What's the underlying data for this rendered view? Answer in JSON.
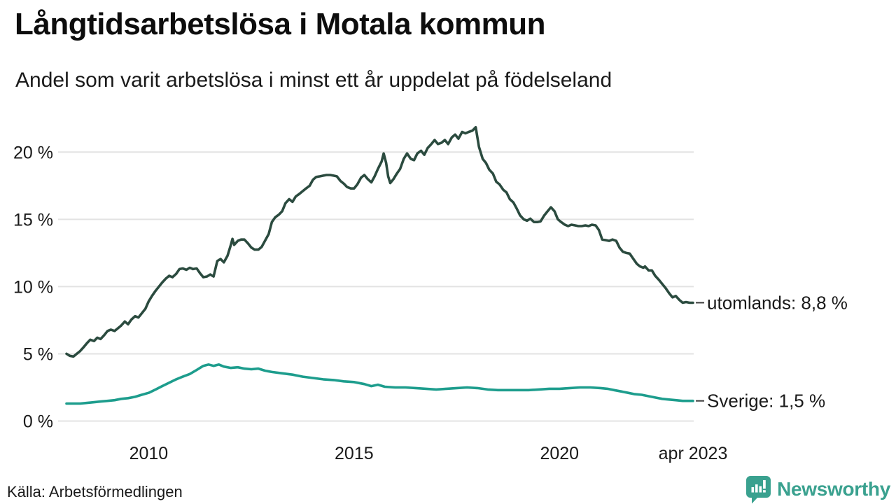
{
  "header": {
    "title": "Långtidsarbetslösa i Motala kommun",
    "subtitle": "Andel som varit arbetslösa i minst ett år uppdelat på födelseland"
  },
  "footer": {
    "source": "Källa: Arbetsförmedlingen",
    "brand": "Newsworthy"
  },
  "colors": {
    "utomlands_line": "#2b4b3f",
    "sverige_line": "#1d9d8d",
    "grid": "#e3e3e3",
    "text": "#1a1a1a",
    "brand_teal": "#3aa18f"
  },
  "chart_data": {
    "type": "line",
    "title": "Långtidsarbetslösa i Motala kommun",
    "subtitle": "Andel som varit arbetslösa i minst ett år uppdelat på födelseland",
    "xlabel": "",
    "ylabel": "",
    "x_unit": "year",
    "y_unit": "%",
    "xlim": [
      2008.0,
      2023.25
    ],
    "ylim": [
      0,
      22
    ],
    "grid": "horizontal",
    "legend_position": "end-of-line-labels",
    "y_ticks": [
      {
        "v": 0,
        "label": "0 %"
      },
      {
        "v": 5,
        "label": "5 %"
      },
      {
        "v": 10,
        "label": "10 %"
      },
      {
        "v": 15,
        "label": "15 %"
      },
      {
        "v": 20,
        "label": "20 %"
      }
    ],
    "x_ticks": [
      {
        "x": 2010,
        "label": "2010"
      },
      {
        "x": 2015,
        "label": "2015"
      },
      {
        "x": 2020,
        "label": "2020"
      },
      {
        "x": 2023.25,
        "label": "apr 2023"
      }
    ],
    "series": [
      {
        "name": "utomlands",
        "end_label": "utomlands: 8,8 %",
        "end_value_text": "8,8 %",
        "color": "#2b4b3f",
        "points": [
          [
            2008.0,
            5.0
          ],
          [
            2008.08,
            4.85
          ],
          [
            2008.17,
            4.8
          ],
          [
            2008.25,
            5.0
          ],
          [
            2008.33,
            5.2
          ],
          [
            2008.42,
            5.5
          ],
          [
            2008.5,
            5.8
          ],
          [
            2008.58,
            6.05
          ],
          [
            2008.67,
            5.95
          ],
          [
            2008.75,
            6.2
          ],
          [
            2008.83,
            6.1
          ],
          [
            2008.92,
            6.4
          ],
          [
            2009.0,
            6.7
          ],
          [
            2009.08,
            6.8
          ],
          [
            2009.17,
            6.7
          ],
          [
            2009.25,
            6.9
          ],
          [
            2009.33,
            7.1
          ],
          [
            2009.42,
            7.4
          ],
          [
            2009.5,
            7.2
          ],
          [
            2009.58,
            7.55
          ],
          [
            2009.67,
            7.8
          ],
          [
            2009.75,
            7.7
          ],
          [
            2009.83,
            8.0
          ],
          [
            2009.92,
            8.35
          ],
          [
            2010.0,
            8.9
          ],
          [
            2010.08,
            9.3
          ],
          [
            2010.17,
            9.7
          ],
          [
            2010.25,
            10.0
          ],
          [
            2010.33,
            10.3
          ],
          [
            2010.42,
            10.6
          ],
          [
            2010.5,
            10.8
          ],
          [
            2010.58,
            10.7
          ],
          [
            2010.67,
            10.95
          ],
          [
            2010.75,
            11.3
          ],
          [
            2010.83,
            11.35
          ],
          [
            2010.92,
            11.25
          ],
          [
            2011.0,
            11.4
          ],
          [
            2011.08,
            11.3
          ],
          [
            2011.17,
            11.35
          ],
          [
            2011.25,
            11.0
          ],
          [
            2011.33,
            10.7
          ],
          [
            2011.42,
            10.75
          ],
          [
            2011.5,
            10.9
          ],
          [
            2011.58,
            10.75
          ],
          [
            2011.67,
            11.9
          ],
          [
            2011.75,
            12.05
          ],
          [
            2011.83,
            11.8
          ],
          [
            2011.92,
            12.3
          ],
          [
            2012.0,
            13.1
          ],
          [
            2012.04,
            13.55
          ],
          [
            2012.08,
            13.1
          ],
          [
            2012.17,
            13.4
          ],
          [
            2012.25,
            13.5
          ],
          [
            2012.33,
            13.5
          ],
          [
            2012.42,
            13.2
          ],
          [
            2012.5,
            12.9
          ],
          [
            2012.58,
            12.75
          ],
          [
            2012.67,
            12.75
          ],
          [
            2012.75,
            12.95
          ],
          [
            2012.83,
            13.4
          ],
          [
            2012.92,
            13.9
          ],
          [
            2013.0,
            14.8
          ],
          [
            2013.08,
            15.15
          ],
          [
            2013.17,
            15.35
          ],
          [
            2013.25,
            15.6
          ],
          [
            2013.33,
            16.2
          ],
          [
            2013.42,
            16.5
          ],
          [
            2013.5,
            16.3
          ],
          [
            2013.58,
            16.7
          ],
          [
            2013.67,
            16.9
          ],
          [
            2013.75,
            17.1
          ],
          [
            2013.83,
            17.3
          ],
          [
            2013.92,
            17.5
          ],
          [
            2014.0,
            17.95
          ],
          [
            2014.08,
            18.15
          ],
          [
            2014.17,
            18.2
          ],
          [
            2014.25,
            18.25
          ],
          [
            2014.33,
            18.3
          ],
          [
            2014.42,
            18.3
          ],
          [
            2014.5,
            18.25
          ],
          [
            2014.58,
            18.2
          ],
          [
            2014.67,
            17.85
          ],
          [
            2014.75,
            17.65
          ],
          [
            2014.83,
            17.4
          ],
          [
            2014.92,
            17.3
          ],
          [
            2015.0,
            17.3
          ],
          [
            2015.08,
            17.6
          ],
          [
            2015.17,
            18.1
          ],
          [
            2015.25,
            18.3
          ],
          [
            2015.33,
            18.0
          ],
          [
            2015.42,
            17.75
          ],
          [
            2015.5,
            18.2
          ],
          [
            2015.58,
            18.75
          ],
          [
            2015.67,
            19.3
          ],
          [
            2015.72,
            19.9
          ],
          [
            2015.78,
            19.2
          ],
          [
            2015.83,
            18.2
          ],
          [
            2015.88,
            17.7
          ],
          [
            2015.96,
            18.0
          ],
          [
            2016.04,
            18.4
          ],
          [
            2016.12,
            18.75
          ],
          [
            2016.21,
            19.5
          ],
          [
            2016.29,
            19.9
          ],
          [
            2016.38,
            19.5
          ],
          [
            2016.46,
            19.4
          ],
          [
            2016.54,
            19.9
          ],
          [
            2016.63,
            20.1
          ],
          [
            2016.71,
            19.8
          ],
          [
            2016.79,
            20.3
          ],
          [
            2016.88,
            20.6
          ],
          [
            2016.96,
            20.9
          ],
          [
            2017.04,
            20.6
          ],
          [
            2017.13,
            20.7
          ],
          [
            2017.21,
            20.9
          ],
          [
            2017.29,
            20.6
          ],
          [
            2017.38,
            21.1
          ],
          [
            2017.46,
            21.3
          ],
          [
            2017.54,
            21.0
          ],
          [
            2017.63,
            21.5
          ],
          [
            2017.71,
            21.4
          ],
          [
            2017.79,
            21.5
          ],
          [
            2017.88,
            21.6
          ],
          [
            2017.96,
            21.85
          ],
          [
            2018.04,
            20.4
          ],
          [
            2018.13,
            19.5
          ],
          [
            2018.21,
            19.2
          ],
          [
            2018.29,
            18.7
          ],
          [
            2018.38,
            18.4
          ],
          [
            2018.46,
            17.8
          ],
          [
            2018.54,
            17.6
          ],
          [
            2018.63,
            17.2
          ],
          [
            2018.71,
            17.0
          ],
          [
            2018.79,
            16.5
          ],
          [
            2018.88,
            16.25
          ],
          [
            2018.96,
            15.8
          ],
          [
            2019.04,
            15.3
          ],
          [
            2019.13,
            15.0
          ],
          [
            2019.21,
            14.9
          ],
          [
            2019.29,
            15.05
          ],
          [
            2019.38,
            14.8
          ],
          [
            2019.46,
            14.8
          ],
          [
            2019.54,
            14.85
          ],
          [
            2019.63,
            15.3
          ],
          [
            2019.71,
            15.6
          ],
          [
            2019.79,
            15.9
          ],
          [
            2019.88,
            15.6
          ],
          [
            2019.96,
            15.0
          ],
          [
            2020.04,
            14.8
          ],
          [
            2020.13,
            14.6
          ],
          [
            2020.21,
            14.5
          ],
          [
            2020.29,
            14.6
          ],
          [
            2020.38,
            14.55
          ],
          [
            2020.46,
            14.5
          ],
          [
            2020.54,
            14.5
          ],
          [
            2020.63,
            14.55
          ],
          [
            2020.71,
            14.5
          ],
          [
            2020.79,
            14.6
          ],
          [
            2020.88,
            14.55
          ],
          [
            2020.96,
            14.2
          ],
          [
            2021.04,
            13.5
          ],
          [
            2021.13,
            13.45
          ],
          [
            2021.21,
            13.4
          ],
          [
            2021.29,
            13.5
          ],
          [
            2021.38,
            13.4
          ],
          [
            2021.46,
            12.9
          ],
          [
            2021.54,
            12.6
          ],
          [
            2021.63,
            12.5
          ],
          [
            2021.71,
            12.45
          ],
          [
            2021.79,
            12.1
          ],
          [
            2021.88,
            11.7
          ],
          [
            2021.96,
            11.5
          ],
          [
            2022.04,
            11.4
          ],
          [
            2022.08,
            11.5
          ],
          [
            2022.17,
            11.2
          ],
          [
            2022.25,
            11.2
          ],
          [
            2022.33,
            10.8
          ],
          [
            2022.42,
            10.5
          ],
          [
            2022.5,
            10.2
          ],
          [
            2022.58,
            9.9
          ],
          [
            2022.67,
            9.5
          ],
          [
            2022.75,
            9.2
          ],
          [
            2022.83,
            9.3
          ],
          [
            2022.92,
            9.0
          ],
          [
            2023.0,
            8.8
          ],
          [
            2023.08,
            8.85
          ],
          [
            2023.17,
            8.8
          ],
          [
            2023.25,
            8.8
          ]
        ]
      },
      {
        "name": "Sverige",
        "end_label": "Sverige: 1,5 %",
        "end_value_text": "1,5 %",
        "color": "#1d9d8d",
        "points": [
          [
            2008.0,
            1.3
          ],
          [
            2008.17,
            1.3
          ],
          [
            2008.33,
            1.3
          ],
          [
            2008.5,
            1.35
          ],
          [
            2008.67,
            1.4
          ],
          [
            2008.83,
            1.45
          ],
          [
            2009.0,
            1.5
          ],
          [
            2009.17,
            1.55
          ],
          [
            2009.33,
            1.65
          ],
          [
            2009.5,
            1.7
          ],
          [
            2009.67,
            1.8
          ],
          [
            2009.83,
            1.95
          ],
          [
            2010.0,
            2.1
          ],
          [
            2010.17,
            2.35
          ],
          [
            2010.33,
            2.6
          ],
          [
            2010.5,
            2.85
          ],
          [
            2010.67,
            3.1
          ],
          [
            2010.83,
            3.3
          ],
          [
            2011.0,
            3.5
          ],
          [
            2011.17,
            3.8
          ],
          [
            2011.33,
            4.1
          ],
          [
            2011.46,
            4.2
          ],
          [
            2011.58,
            4.1
          ],
          [
            2011.71,
            4.2
          ],
          [
            2011.83,
            4.05
          ],
          [
            2012.0,
            3.95
          ],
          [
            2012.17,
            4.0
          ],
          [
            2012.33,
            3.9
          ],
          [
            2012.5,
            3.85
          ],
          [
            2012.67,
            3.9
          ],
          [
            2012.83,
            3.75
          ],
          [
            2013.0,
            3.65
          ],
          [
            2013.25,
            3.55
          ],
          [
            2013.5,
            3.45
          ],
          [
            2013.75,
            3.3
          ],
          [
            2014.0,
            3.2
          ],
          [
            2014.25,
            3.1
          ],
          [
            2014.5,
            3.05
          ],
          [
            2014.75,
            2.95
          ],
          [
            2015.0,
            2.9
          ],
          [
            2015.25,
            2.75
          ],
          [
            2015.42,
            2.6
          ],
          [
            2015.58,
            2.7
          ],
          [
            2015.75,
            2.55
          ],
          [
            2016.0,
            2.5
          ],
          [
            2016.25,
            2.5
          ],
          [
            2016.5,
            2.45
          ],
          [
            2016.75,
            2.4
          ],
          [
            2017.0,
            2.35
          ],
          [
            2017.25,
            2.4
          ],
          [
            2017.5,
            2.45
          ],
          [
            2017.75,
            2.5
          ],
          [
            2018.0,
            2.45
          ],
          [
            2018.25,
            2.35
          ],
          [
            2018.5,
            2.3
          ],
          [
            2018.75,
            2.3
          ],
          [
            2019.0,
            2.3
          ],
          [
            2019.25,
            2.3
          ],
          [
            2019.5,
            2.35
          ],
          [
            2019.75,
            2.4
          ],
          [
            2020.0,
            2.4
          ],
          [
            2020.25,
            2.45
          ],
          [
            2020.5,
            2.5
          ],
          [
            2020.75,
            2.5
          ],
          [
            2021.0,
            2.45
          ],
          [
            2021.17,
            2.4
          ],
          [
            2021.33,
            2.3
          ],
          [
            2021.5,
            2.2
          ],
          [
            2021.67,
            2.1
          ],
          [
            2021.83,
            2.0
          ],
          [
            2022.0,
            1.95
          ],
          [
            2022.17,
            1.85
          ],
          [
            2022.33,
            1.75
          ],
          [
            2022.5,
            1.65
          ],
          [
            2022.67,
            1.6
          ],
          [
            2022.83,
            1.55
          ],
          [
            2023.0,
            1.5
          ],
          [
            2023.25,
            1.5
          ]
        ]
      }
    ]
  }
}
